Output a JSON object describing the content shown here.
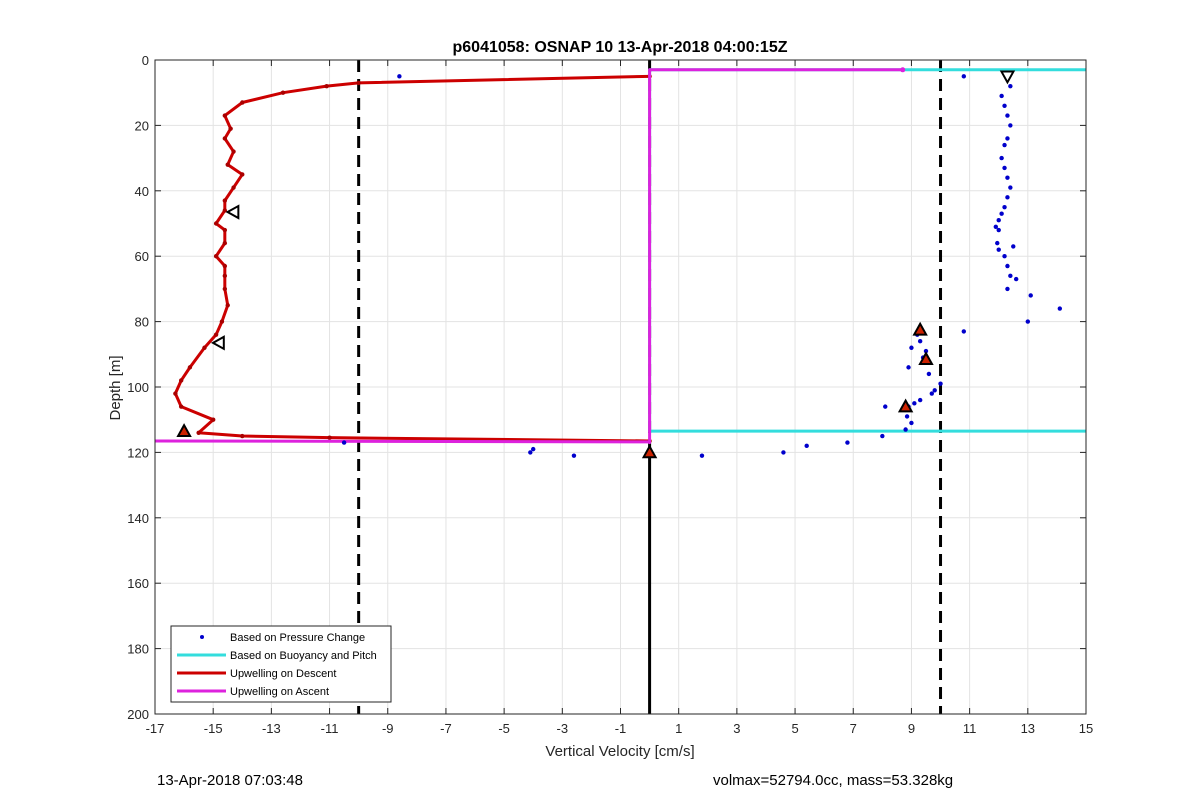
{
  "chart_data": {
    "type": "line",
    "title": "p6041058: OSNAP 10 13-Apr-2018 04:00:15Z",
    "xlabel": "Vertical Velocity [cm/s]",
    "ylabel": "Depth [m]",
    "xlim": [
      -17,
      15
    ],
    "ylim": [
      0,
      200
    ],
    "y_reversed": true,
    "xticks": [
      -17,
      -15,
      -13,
      -11,
      -9,
      -7,
      -5,
      -3,
      -1,
      1,
      3,
      5,
      7,
      9,
      11,
      13,
      15
    ],
    "yticks": [
      0,
      20,
      40,
      60,
      80,
      100,
      120,
      140,
      160,
      180,
      200
    ],
    "grid": true,
    "legend_position": "bottom-left",
    "series": [
      {
        "name": "Based on Pressure Change",
        "style": "points",
        "color": "#0000cc",
        "x": [
          -8.6,
          10.8,
          12.4,
          12.1,
          12.2,
          12.3,
          12.4,
          12.3,
          12.2,
          12.1,
          12.2,
          12.3,
          12.4,
          12.3,
          12.2,
          12.1,
          12.0,
          11.9,
          12.0,
          11.95,
          12.0,
          12.2,
          12.5,
          12.3,
          12.4,
          12.6,
          12.3,
          13.1,
          14.1,
          13.0,
          10.8,
          9.2,
          9.3,
          9.0,
          9.5,
          9.4,
          9.6,
          8.9,
          10.0,
          9.8,
          9.7,
          9.3,
          9.1,
          8.9,
          8.1,
          8.8,
          8.85,
          9.0,
          8.8,
          8.0,
          6.8,
          5.4,
          4.6,
          1.8,
          -2.6,
          -4.1,
          -4.0,
          -10.5
        ],
        "y": [
          5,
          5,
          8,
          11,
          14,
          17,
          20,
          24,
          26,
          30,
          33,
          36,
          39,
          42,
          45,
          47,
          49,
          51,
          52,
          56,
          58,
          60,
          57,
          63,
          66,
          67,
          70,
          72,
          76,
          80,
          83,
          84,
          86,
          88,
          89,
          91,
          96,
          94,
          99,
          101,
          102,
          104,
          105,
          106,
          106,
          107,
          109,
          111,
          113,
          115,
          117,
          118,
          120,
          121,
          121,
          120,
          119,
          117
        ]
      },
      {
        "name": "Based on Buoyancy and Pitch",
        "style": "line",
        "color": "#33dddd",
        "x": [
          15,
          0,
          0,
          15
        ],
        "y": [
          3,
          3,
          113.5,
          113.5
        ]
      },
      {
        "name": "Upwelling on Descent",
        "style": "line",
        "color": "#cc0000",
        "x": [
          0,
          -10.0,
          -11.1,
          -12.6,
          -14.0,
          -14.6,
          -14.4,
          -14.6,
          -14.3,
          -14.5,
          -14.0,
          -14.3,
          -14.6,
          -14.6,
          -14.9,
          -14.6,
          -14.6,
          -14.9,
          -14.6,
          -14.6,
          -14.6,
          -14.5,
          -14.7,
          -14.9,
          -15.3,
          -15.8,
          -16.1,
          -16.3,
          -16.1,
          -15.0,
          -15.5,
          -14.0,
          -11.0,
          0
        ],
        "y": [
          5,
          7,
          8,
          10,
          13,
          17,
          21,
          24,
          28,
          32,
          35,
          39,
          43,
          46,
          50,
          52,
          56,
          60,
          63,
          66,
          70,
          75,
          80,
          84,
          88,
          94,
          98,
          102,
          106,
          110,
          114,
          115,
          115.5,
          116.5
        ]
      },
      {
        "name": "Upwelling on Ascent",
        "style": "line",
        "color": "#dd22dd",
        "x": [
          -17,
          0,
          0,
          0,
          8.7
        ],
        "y": [
          116.5,
          116.8,
          117,
          3,
          3
        ]
      }
    ],
    "reference_lines": [
      {
        "style": "dashed",
        "color": "#000000",
        "x": -10,
        "y": [
          0,
          200
        ]
      },
      {
        "style": "dashed",
        "color": "#000000",
        "x": 0,
        "y": [
          0,
          117
        ]
      },
      {
        "style": "dashed",
        "color": "#000000",
        "x": 10,
        "y": [
          0,
          200
        ]
      },
      {
        "style": "solid",
        "color": "#000000",
        "x": 0,
        "y": [
          117,
          200
        ]
      }
    ],
    "markers": [
      {
        "shape": "triangle-up-filled",
        "x": -16.0,
        "y": 113.5
      },
      {
        "shape": "triangle-up-filled",
        "x": 0.0,
        "y": 120
      },
      {
        "shape": "triangle-up-filled",
        "x": 8.8,
        "y": 106
      },
      {
        "shape": "triangle-up-filled",
        "x": 9.5,
        "y": 91.5
      },
      {
        "shape": "triangle-up-filled",
        "x": 9.3,
        "y": 82.5
      },
      {
        "shape": "triangle-left-open",
        "x": -14.3,
        "y": 46.5
      },
      {
        "shape": "triangle-left-open",
        "x": -14.8,
        "y": 86.5
      },
      {
        "shape": "triangle-down-open",
        "x": 12.3,
        "y": 5
      }
    ]
  },
  "footer": {
    "left": "13-Apr-2018 07:03:48",
    "right": "volmax=52794.0cc, mass=53.328kg"
  }
}
